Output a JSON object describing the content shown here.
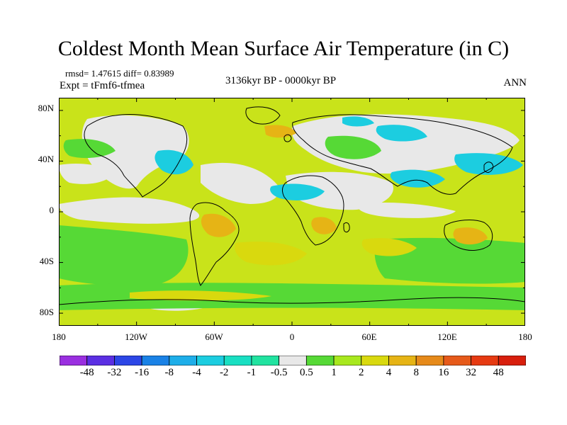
{
  "title": "Coldest Month Mean Surface Air Temperature (in C)",
  "stats_text": "rmsd= 1.47615 diff= 0.83989",
  "expt_text": "Expt = tFmf6-tfmea",
  "period_text": "3136kyr BP - 0000kyr BP",
  "season_text": "ANN",
  "lat_labels": [
    "80N",
    "40N",
    "0",
    "40S",
    "80S"
  ],
  "lon_labels": [
    "180",
    "120W",
    "60W",
    "0",
    "60E",
    "120E",
    "180"
  ],
  "colorbar": {
    "labels": [
      "-48",
      "-32",
      "-16",
      "-8",
      "-4",
      "-2",
      "-1",
      "-0.5",
      "0.5",
      "1",
      "2",
      "4",
      "8",
      "16",
      "32",
      "48"
    ],
    "colors": [
      "#9a2fe0",
      "#5b2fe3",
      "#2c46e6",
      "#1a82e6",
      "#1eaee9",
      "#1ccde0",
      "#19dfc2",
      "#21e3a0",
      "#e8e8e8",
      "#56d936",
      "#a8e81e",
      "#d9d90e",
      "#e6b415",
      "#e68a1a",
      "#e65a1a",
      "#e63a12",
      "#d81f0d"
    ]
  },
  "map_colors": {
    "ocean_base": "#c9e31a",
    "neutral": "#e8e8e8",
    "green": "#56d936",
    "lightgreen": "#8fe12a",
    "cyan": "#1ccde0",
    "teal": "#21e3a0",
    "yellow": "#d9d90e",
    "orange": "#e6b415",
    "coast": "#000000"
  }
}
